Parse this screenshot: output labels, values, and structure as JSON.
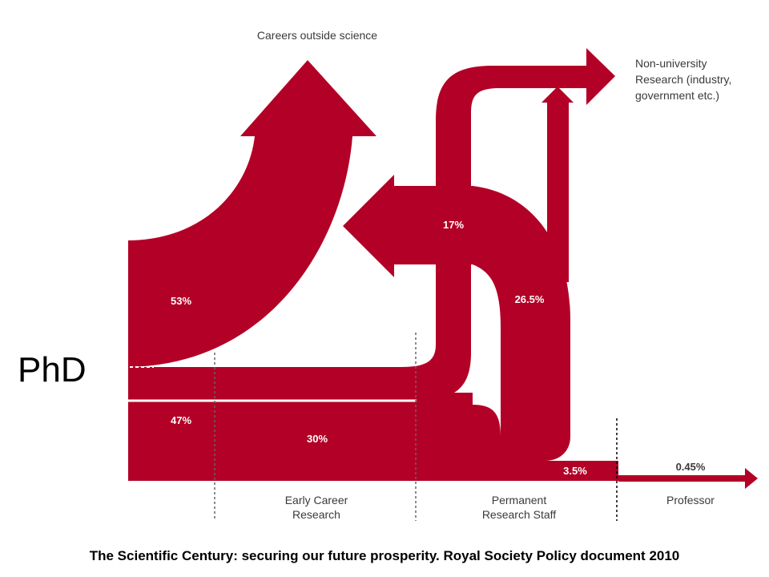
{
  "colors": {
    "flow": "#b30026",
    "text": "#3a3a3a"
  },
  "start_label": "PhD",
  "destinations": {
    "careers_outside": "Careers outside science",
    "non_university": [
      "Non-university",
      "Research (industry,",
      "government etc.)"
    ]
  },
  "stages": [
    {
      "id": "early",
      "lines": [
        "Early Career",
        "Research"
      ]
    },
    {
      "id": "permanent",
      "lines": [
        "Permanent",
        "Research Staff"
      ]
    },
    {
      "id": "professor",
      "lines": [
        "Professor"
      ]
    }
  ],
  "flows": {
    "careers_outside_pct": "53%",
    "continue_pct": "47%",
    "early_to_nonuni_pct": "17%",
    "permanent_to_nonuni_pct": "26.5%",
    "to_permanent_pct": "30%",
    "permanent_stay_pct": "3.5%",
    "professor_pct": "0.45%"
  },
  "caption": "The Scientific Century:  securing our future prosperity. Royal Society Policy document 2010"
}
